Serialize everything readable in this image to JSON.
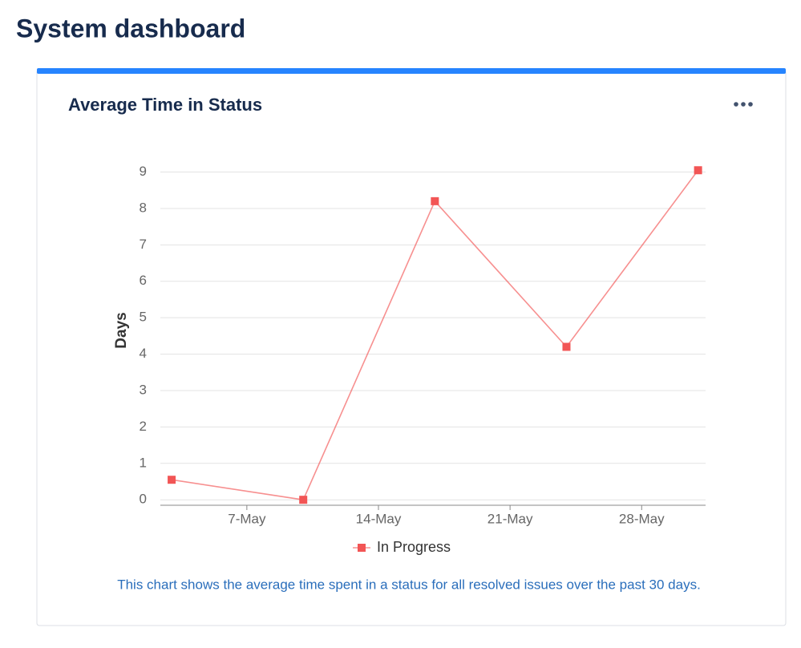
{
  "dashboard_title": "System dashboard",
  "gadget_title": "Average Time in Status",
  "caption": "This chart shows the average time spent in a status for all resolved issues over the past 30 days.",
  "chart_data": {
    "type": "line",
    "y_label": "Days",
    "x": [
      3,
      10,
      17,
      24,
      31
    ],
    "xlim": [
      2.4,
      31.4
    ],
    "xticks": [
      {
        "value": 7,
        "label": "7-May"
      },
      {
        "value": 14,
        "label": "14-May"
      },
      {
        "value": 21,
        "label": "21-May"
      },
      {
        "value": 28,
        "label": "28-May"
      }
    ],
    "ylim": [
      -0.15,
      9.1
    ],
    "yticks": [
      0,
      1,
      2,
      3,
      4,
      5,
      6,
      7,
      8,
      9
    ],
    "grid": true,
    "legend": "bottom",
    "series": [
      {
        "name": "In Progress",
        "color": "#f25555",
        "values": [
          0.55,
          0,
          8.2,
          4.2,
          9.05
        ]
      }
    ]
  }
}
